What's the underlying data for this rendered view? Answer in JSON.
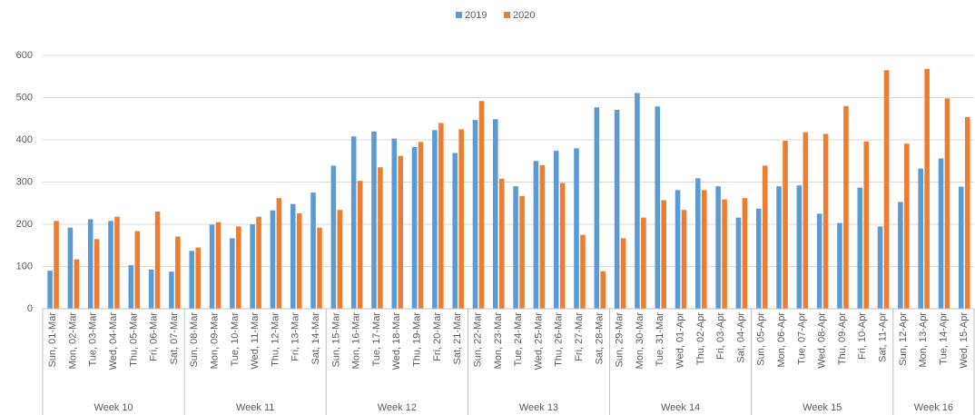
{
  "chart_data": {
    "type": "bar",
    "groups": [
      {
        "name": "Week 10",
        "categories": [
          "Sun, 01-Mar",
          "Mon, 02-Mar",
          "Tue, 03-Mar",
          "Wed, 04-Mar",
          "Thu, 05-Mar",
          "Fri, 06-Mar",
          "Sat, 07-Mar"
        ]
      },
      {
        "name": "Week 11",
        "categories": [
          "Sun, 08-Mar",
          "Mon, 09-Mar",
          "Tue, 10-Mar",
          "Wed, 11-Mar",
          "Thu, 12-Mar",
          "Fri, 13-Mar",
          "Sat, 14-Mar"
        ]
      },
      {
        "name": "Week 12",
        "categories": [
          "Sun, 15-Mar",
          "Mon, 16-Mar",
          "Tue, 17-Mar",
          "Wed, 18-Mar",
          "Thu, 19-Mar",
          "Fri, 20-Mar",
          "Sat, 21-Mar"
        ]
      },
      {
        "name": "Week 13",
        "categories": [
          "Sun, 22-Mar",
          "Mon, 23-Mar",
          "Tue, 24-Mar",
          "Wed, 25-Mar",
          "Thu, 26-Mar",
          "Fri, 27-Mar",
          "Sat, 28-Mar"
        ]
      },
      {
        "name": "Week 14",
        "categories": [
          "Sun, 29-Mar",
          "Mon, 30-Mar",
          "Tue, 31-Mar",
          "Wed, 01-Apr",
          "Thu, 02-Apr",
          "Fri, 03-Apr",
          "Sat, 04-Apr"
        ]
      },
      {
        "name": "Week 15",
        "categories": [
          "Sun, 05-Apr",
          "Mon, 06-Apr",
          "Tue, 07-Apr",
          "Wed, 08-Apr",
          "Thu, 09-Apr",
          "Fri, 10-Apr",
          "Sat, 11-Apr"
        ]
      },
      {
        "name": "Week 16",
        "categories": [
          "Sun, 12-Apr",
          "Mon, 13-Apr",
          "Tue, 14-Apr",
          "Wed, 15-Apr"
        ]
      }
    ],
    "series": [
      {
        "name": "2019",
        "color": "#5b9bd5",
        "values": [
          90,
          192,
          212,
          208,
          103,
          93,
          88,
          137,
          199,
          167,
          200,
          233,
          248,
          275,
          339,
          408,
          420,
          403,
          383,
          423,
          369,
          447,
          449,
          290,
          350,
          374,
          380,
          477,
          471,
          511,
          479,
          281,
          309,
          290,
          216,
          237,
          290,
          292,
          225,
          203,
          287,
          195,
          253,
          332,
          356,
          289
        ]
      },
      {
        "name": "2020",
        "color": "#ed7d31",
        "values": [
          208,
          117,
          165,
          218,
          184,
          230,
          171,
          145,
          205,
          195,
          218,
          262,
          226,
          192,
          234,
          303,
          335,
          362,
          395,
          440,
          425,
          492,
          308,
          267,
          340,
          298,
          175,
          89,
          167,
          216,
          257,
          234,
          281,
          259,
          262,
          339,
          398,
          418,
          414,
          480,
          396,
          565,
          391,
          568,
          498,
          454
        ]
      }
    ],
    "ylim": [
      0,
      600
    ],
    "yticks": [
      0,
      100,
      200,
      300,
      400,
      500,
      600
    ],
    "grid": true,
    "legend": "top"
  }
}
